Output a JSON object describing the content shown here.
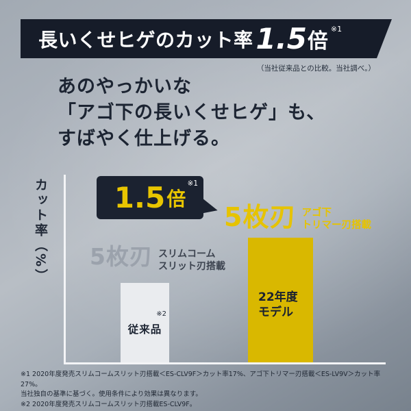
{
  "banner": {
    "title_prefix": "長いくせヒゲのカット率",
    "title_number": "1.5",
    "title_suffix": "倍",
    "ref": "※1"
  },
  "compare_note": "（当社従来品との比較。当社調べ。）",
  "headline": {
    "line1": "あのやっかいな",
    "line2": "「アゴ下の長いくせヒゲ」も、",
    "line3": "すばやく仕上げる。"
  },
  "chart": {
    "y_axis_label": "カット率（%）",
    "bubble": {
      "value": "1.5",
      "unit": "倍",
      "ref": "※1"
    },
    "new_blade": {
      "title": "5枚刃",
      "desc1": "アゴ下",
      "desc2": "トリマー刃搭載"
    },
    "old_blade": {
      "title": "5枚刃",
      "desc1": "スリムコーム",
      "desc2": "スリット刃搭載"
    },
    "old_bar": {
      "label": "従来品",
      "ref": "※2"
    },
    "new_bar": {
      "label1": "22年度",
      "label2": "モデル"
    }
  },
  "footnotes": [
    "※1 2020年度発売スリムコームスリット刃搭載＜ES-CLV9F＞カット率17%、アゴ下トリマー刃搭載＜ES-LV9V＞カット率27%。",
    "当社独自の基準に基づく。使用条件により効果は異なります。",
    "※2 2020年度発売スリムコームスリット刃搭載ES-CLV9F。"
  ],
  "colors": {
    "accent_yellow": "#e6c300",
    "bar_yellow": "#d9b800",
    "dark_navy": "#1b2230",
    "bar_gray": "#eaecef"
  },
  "chart_data": {
    "type": "bar",
    "categories": [
      "従来品",
      "22年度モデル"
    ],
    "values": [
      17,
      27
    ],
    "title": "長いくせヒゲのカット率1.5倍（当社従来品との比較。当社調べ。）",
    "xlabel": "",
    "ylabel": "カット率（%）",
    "ylim": [
      0,
      30
    ],
    "unit": "%",
    "legend_position": "none",
    "grid": false,
    "annotations": [
      "1.5倍 ※1",
      "従来品: 5枚刃 スリムコームスリット刃搭載 ※2",
      "22年度モデル: 5枚刃 アゴ下トリマー刃搭載"
    ],
    "bar_colors": [
      "#eaecef",
      "#d9b800"
    ]
  }
}
